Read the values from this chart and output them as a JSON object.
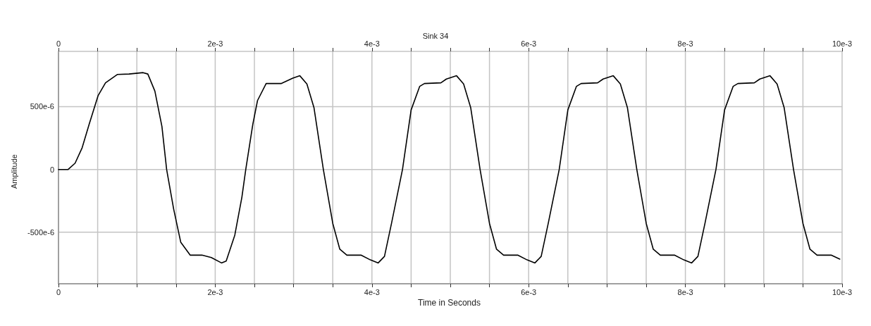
{
  "chart_data": {
    "type": "line",
    "title": "Sink 34",
    "xlabel": "Time in Seconds",
    "ylabel": "Amplitude",
    "xlim": [
      0,
      0.01
    ],
    "xticks": [
      {
        "value": 0,
        "label": "0"
      },
      {
        "value": 0.0005,
        "label": null
      },
      {
        "value": 0.001,
        "label": null
      },
      {
        "value": 0.0015,
        "label": null
      },
      {
        "value": 0.002,
        "label": "2e-3"
      },
      {
        "value": 0.0025,
        "label": null
      },
      {
        "value": 0.003,
        "label": null
      },
      {
        "value": 0.0035,
        "label": null
      },
      {
        "value": 0.004,
        "label": "4e-3"
      },
      {
        "value": 0.0045,
        "label": null
      },
      {
        "value": 0.005,
        "label": null
      },
      {
        "value": 0.0055,
        "label": null
      },
      {
        "value": 0.006,
        "label": "6e-3"
      },
      {
        "value": 0.0065,
        "label": null
      },
      {
        "value": 0.007,
        "label": null
      },
      {
        "value": 0.0075,
        "label": null
      },
      {
        "value": 0.008,
        "label": "8e-3"
      },
      {
        "value": 0.0085,
        "label": null
      },
      {
        "value": 0.009,
        "label": null
      },
      {
        "value": 0.0095,
        "label": null
      },
      {
        "value": 0.01,
        "label": "10e-3"
      }
    ],
    "x2lim": [
      0,
      0.01
    ],
    "x2ticks": [
      {
        "value": 0,
        "label": "0"
      },
      {
        "value": 0.0005,
        "label": null
      },
      {
        "value": 0.001,
        "label": null
      },
      {
        "value": 0.0015,
        "label": null
      },
      {
        "value": 0.002,
        "label": "2e-3"
      },
      {
        "value": 0.0025,
        "label": null
      },
      {
        "value": 0.003,
        "label": null
      },
      {
        "value": 0.0035,
        "label": null
      },
      {
        "value": 0.004,
        "label": "4e-3"
      },
      {
        "value": 0.0045,
        "label": null
      },
      {
        "value": 0.005,
        "label": null
      },
      {
        "value": 0.0055,
        "label": null
      },
      {
        "value": 0.006,
        "label": "6e-3"
      },
      {
        "value": 0.0065,
        "label": null
      },
      {
        "value": 0.007,
        "label": null
      },
      {
        "value": 0.0075,
        "label": null
      },
      {
        "value": 0.008,
        "label": "8e-3"
      },
      {
        "value": 0.0085,
        "label": null
      },
      {
        "value": 0.009,
        "label": null
      },
      {
        "value": 0.0095,
        "label": null
      },
      {
        "value": 0.01,
        "label": "10e-3"
      }
    ],
    "ylim": [
      -0.00091,
      0.00094
    ],
    "yticks": [
      {
        "value": -0.0005,
        "label": "-500e-6"
      },
      0,
      {
        "value": 0.0005,
        "label": "500e-6"
      }
    ],
    "grid": true,
    "marker": "none",
    "line_style": "solid",
    "series": [
      {
        "color": "#000000",
        "x": [
          0,
          0.000123,
          0.000212,
          0.000302,
          0.000392,
          0.000505,
          0.0006,
          0.00075,
          0.0009,
          0.00108,
          0.00114,
          0.00123,
          0.00132,
          0.00138,
          0.00147,
          0.00156,
          0.00168,
          0.00183,
          0.00195,
          0.00208,
          0.00214,
          0.00225,
          0.00234,
          0.00239,
          0.00248,
          0.00254,
          0.00265,
          0.00284,
          0.00299,
          0.00308,
          0.00317,
          0.00326,
          0.00338,
          0.0035,
          0.00359,
          0.00368,
          0.00386,
          0.00398,
          0.00408,
          0.00416,
          0.00425,
          0.00439,
          0.0045,
          0.00461,
          0.00467,
          0.00488,
          0.00495,
          0.00508,
          0.00517,
          0.00526,
          0.00538,
          0.0055,
          0.00559,
          0.00568,
          0.00586,
          0.00598,
          0.00608,
          0.00616,
          0.00625,
          0.00639,
          0.0065,
          0.00661,
          0.00667,
          0.00688,
          0.00695,
          0.00708,
          0.00717,
          0.00726,
          0.00738,
          0.0075,
          0.00759,
          0.00768,
          0.00786,
          0.00798,
          0.00808,
          0.00816,
          0.00825,
          0.00839,
          0.0085,
          0.00861,
          0.00867,
          0.00888,
          0.00895,
          0.00908,
          0.00917,
          0.00926,
          0.00938,
          0.0095,
          0.00959,
          0.00968,
          0.00986,
          0.00997
        ],
        "values": [
          0,
          0,
          5e-05,
          0.000173,
          0.000361,
          0.000587,
          0.00069,
          0.000756,
          0.00076,
          0.000771,
          0.00076,
          0.000624,
          0.000342,
          0,
          -0.000316,
          -0.000579,
          -0.000682,
          -0.000682,
          -0.000701,
          -0.000744,
          -0.000729,
          -0.000523,
          -0.000222,
          0,
          0.000361,
          0.000549,
          0.000684,
          0.000684,
          0.000727,
          0.000746,
          0.000681,
          0.000493,
          0,
          -0.000429,
          -0.000635,
          -0.000682,
          -0.000682,
          -0.00072,
          -0.000744,
          -0.000692,
          -0.000429,
          0,
          0.000474,
          0.000662,
          0.000684,
          0.00069,
          0.00072,
          0.000746,
          0.000681,
          0.000493,
          0,
          -0.000429,
          -0.000635,
          -0.000682,
          -0.000682,
          -0.00072,
          -0.000744,
          -0.000692,
          -0.000429,
          0,
          0.000474,
          0.000662,
          0.000684,
          0.00069,
          0.00072,
          0.000746,
          0.000681,
          0.000493,
          0,
          -0.000429,
          -0.000635,
          -0.000682,
          -0.000682,
          -0.00072,
          -0.000744,
          -0.000692,
          -0.000429,
          0,
          0.000474,
          0.000662,
          0.000684,
          0.00069,
          0.00072,
          0.000746,
          0.000681,
          0.000493,
          0,
          -0.000429,
          -0.000635,
          -0.000682,
          -0.000682,
          -0.000714
        ]
      }
    ]
  }
}
